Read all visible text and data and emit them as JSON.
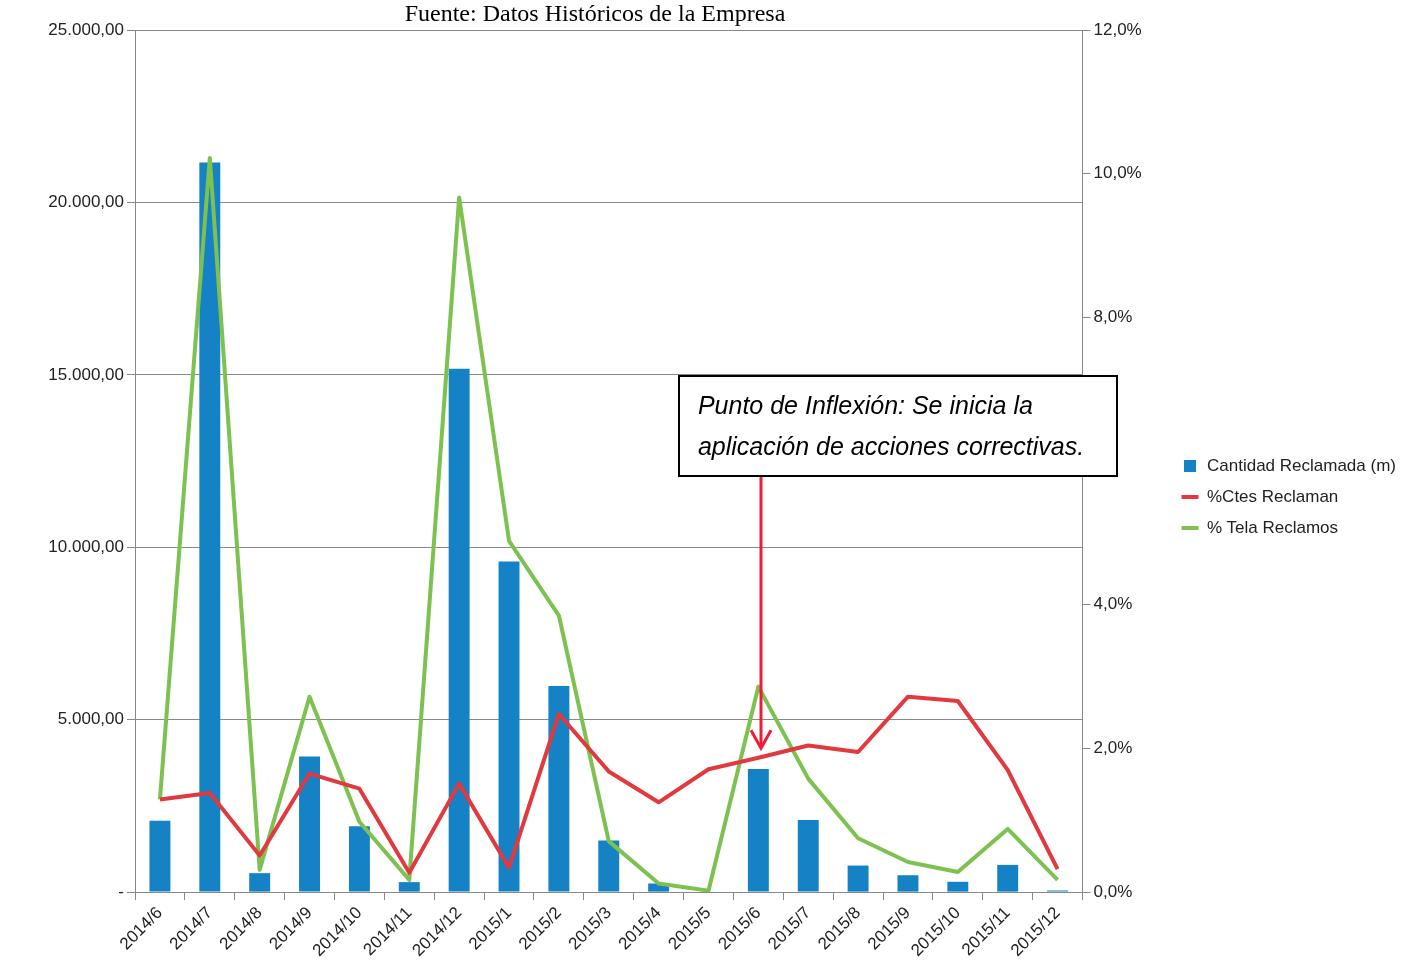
{
  "chart_data": {
    "type": "bar",
    "title": "Fuente: Datos Históricos de la Empresa",
    "categories": [
      "2014/6",
      "2014/7",
      "2014/8",
      "2014/9",
      "2014/10",
      "2014/11",
      "2014/12",
      "2015/1",
      "2015/2",
      "2015/3",
      "2015/4",
      "2015/5",
      "2015/6",
      "2015/7",
      "2015/8",
      "2015/9",
      "2015/10",
      "2015/11",
      "2015/12"
    ],
    "series": [
      {
        "name": "Cantidad Reclamada (m)",
        "color": "#1482c5",
        "values": [
          2070,
          21160,
          550,
          3930,
          1910,
          290,
          15180,
          9590,
          5980,
          1500,
          250,
          0,
          3570,
          2090,
          770,
          490,
          300,
          790,
          50
        ]
      },
      {
        "name": "%Ctes Reclaman",
        "type": "line",
        "axis": "y2",
        "color": "#e0393e",
        "values": [
          1.29,
          1.38,
          0.51,
          1.65,
          1.44,
          0.27,
          1.51,
          0.34,
          2.48,
          1.68,
          1.25,
          1.71,
          1.87,
          2.04,
          1.95,
          2.72,
          2.66,
          1.7,
          0.32
        ]
      },
      {
        "name": "% Tela Reclamos",
        "type": "line",
        "axis": "y2",
        "color": "#7dc150",
        "values": [
          1.29,
          10.22,
          0.31,
          2.72,
          0.98,
          0.17,
          9.67,
          4.89,
          3.85,
          0.71,
          0.12,
          0.02,
          2.86,
          1.58,
          0.75,
          0.42,
          0.28,
          0.88,
          0.17
        ]
      }
    ],
    "ylim": [
      0,
      25000
    ],
    "yticks": [
      {
        "value": 0,
        "label": "-"
      },
      {
        "value": 5000,
        "label": "5.000,00"
      },
      {
        "value": 10000,
        "label": "10.000,00"
      },
      {
        "value": 15000,
        "label": "15.000,00"
      },
      {
        "value": 20000,
        "label": "20.000,00"
      },
      {
        "value": 25000,
        "label": "25.000,00"
      }
    ],
    "y2lim": [
      0,
      12
    ],
    "y2ticks": [
      {
        "value": 0,
        "label": "0,0%"
      },
      {
        "value": 2,
        "label": "2,0%"
      },
      {
        "value": 4,
        "label": "4,0%"
      },
      {
        "value": 6,
        "label": null
      },
      {
        "value": 8,
        "label": "8,0%"
      },
      {
        "value": 10,
        "label": "10,0%"
      },
      {
        "value": 12,
        "label": "12,0%"
      }
    ],
    "annotations": [
      "Punto de Inflexión: Se inicia la aplicación de acciones correctivas."
    ],
    "grid": "y",
    "legend": "right",
    "marker": "none",
    "line_style": "solid"
  }
}
